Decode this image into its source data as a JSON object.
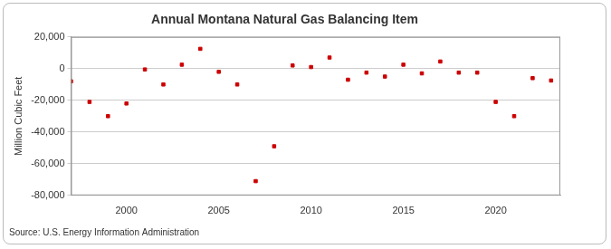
{
  "chart_data": {
    "type": "scatter",
    "title": "Annual Montana Natural Gas Balancing Item",
    "y_label": "Million Cubic Feet",
    "source": "Source: U.S. Energy Information Administration",
    "x": [
      1997,
      1998,
      1999,
      2000,
      2001,
      2002,
      2003,
      2004,
      2005,
      2006,
      2007,
      2008,
      2009,
      2010,
      2011,
      2012,
      2013,
      2014,
      2015,
      2016,
      2017,
      2018,
      2019,
      2020,
      2021,
      2022,
      2023
    ],
    "values": [
      -8000,
      -21000,
      -30000,
      -22000,
      -500,
      -10000,
      2500,
      12500,
      -2000,
      -10000,
      -71000,
      -49000,
      2000,
      1000,
      7000,
      -7000,
      -2500,
      -5000,
      2500,
      -3000,
      4500,
      -2500,
      -2500,
      -21000,
      -30000,
      -6000,
      -7500
    ],
    "color": "#cc0000",
    "marker": "square",
    "xlim": [
      1997,
      2023.5
    ],
    "xticks": [
      2000,
      2005,
      2010,
      2015,
      2020
    ],
    "ylim": [
      -80000,
      20000
    ],
    "yticks": [
      {
        "value": -80000,
        "label": "-80,000"
      },
      {
        "value": -60000,
        "label": "-60,000"
      },
      {
        "value": -40000,
        "label": "-40,000"
      },
      {
        "value": -20000,
        "label": "-20,000"
      },
      0,
      {
        "value": 20000,
        "label": "20,000"
      }
    ],
    "grid": "y",
    "legend": false
  }
}
